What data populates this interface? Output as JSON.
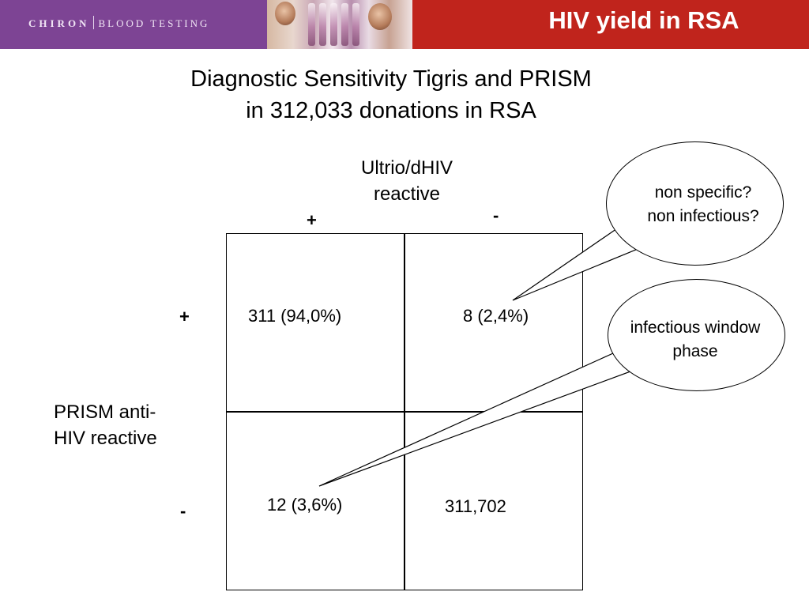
{
  "header": {
    "brand_name": "CHIRON",
    "brand_tagline": "BLOOD TESTING",
    "title": "HIV yield in RSA",
    "colors": {
      "brand_purple": "#7d4494",
      "title_red": "#c0241c"
    }
  },
  "slide": {
    "subtitle_line1": "Diagnostic Sensitivity Tigris and PRISM",
    "subtitle_line2": "in 312,033 donations in RSA",
    "column_header_line1": "Ultrio/dHIV",
    "column_header_line2": "reactive",
    "column_pos": "+",
    "column_neg": "-",
    "row_header_line1": "PRISM anti-",
    "row_header_line2": "HIV reactive",
    "row_pos": "+",
    "row_neg": "-"
  },
  "table": {
    "pos_pos": "311 (94,0%)",
    "pos_neg": "8 (2,4%)",
    "neg_pos": "12 (3,6%)",
    "neg_neg": "311,702"
  },
  "callouts": {
    "nonspecific_line1": "non specific?",
    "nonspecific_line2": "non infectious?",
    "window_line1": "infectious window",
    "window_line2": "phase"
  }
}
